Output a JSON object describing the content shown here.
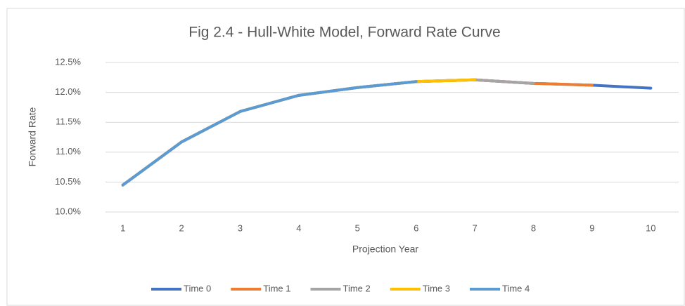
{
  "chart_data": {
    "type": "line",
    "title": "Fig 2.4 - Hull-White Model, Forward Rate Curve",
    "x_label": "Projection Year",
    "y_label": "Forward Rate",
    "categories": [
      1,
      2,
      3,
      4,
      5,
      6,
      7,
      8,
      9,
      10
    ],
    "series": [
      {
        "name": "Time 0",
        "color": "#4472c4",
        "values": [
          10.45,
          11.17,
          11.68,
          11.95,
          12.08,
          12.18,
          12.21,
          12.15,
          12.12,
          12.07
        ]
      },
      {
        "name": "Time 1",
        "color": "#ed7d31",
        "values": [
          10.45,
          11.17,
          11.68,
          11.95,
          12.08,
          12.18,
          12.21,
          12.15,
          12.12,
          null
        ]
      },
      {
        "name": "Time 2",
        "color": "#a5a5a5",
        "values": [
          10.45,
          11.17,
          11.68,
          11.95,
          12.08,
          12.18,
          12.21,
          12.15,
          null,
          null
        ]
      },
      {
        "name": "Time 3",
        "color": "#ffc000",
        "values": [
          10.45,
          11.17,
          11.68,
          11.95,
          12.08,
          12.18,
          12.21,
          null,
          null,
          null
        ]
      },
      {
        "name": "Time 4",
        "color": "#5b9bd5",
        "values": [
          10.45,
          11.17,
          11.68,
          11.95,
          12.08,
          12.18,
          null,
          null,
          null,
          null
        ]
      }
    ],
    "ylim": [
      10.0,
      12.5
    ],
    "yticks": [
      {
        "value": 10.0,
        "label": "10.0%"
      },
      {
        "value": 10.5,
        "label": "10.5%"
      },
      {
        "value": 11.0,
        "label": "11.0%"
      },
      {
        "value": 11.5,
        "label": "11.5%"
      },
      {
        "value": 12.0,
        "label": "12.0%"
      },
      {
        "value": 12.5,
        "label": "12.5%"
      }
    ],
    "grid": true,
    "legend": "bottom"
  }
}
